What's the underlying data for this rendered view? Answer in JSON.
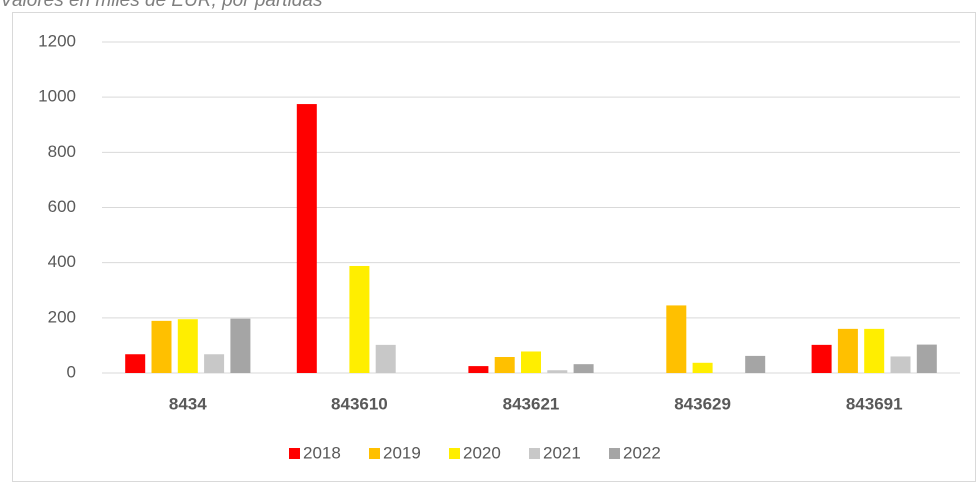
{
  "chart_data": {
    "type": "bar",
    "title": "Valores en miles de EUR, por partidas",
    "categories": [
      "8434",
      "843610",
      "843621",
      "843629",
      "843691"
    ],
    "series": [
      {
        "name": "2018",
        "color": "#ff0000",
        "values": [
          68,
          975,
          25,
          null,
          102
        ]
      },
      {
        "name": "2019",
        "color": "#ffc000",
        "values": [
          189,
          null,
          58,
          245,
          160
        ]
      },
      {
        "name": "2020",
        "color": "#ffee00",
        "values": [
          195,
          388,
          78,
          37,
          160
        ]
      },
      {
        "name": "2021",
        "color": "#c8c8c8",
        "values": [
          68,
          102,
          10,
          null,
          60
        ]
      },
      {
        "name": "2022",
        "color": "#a5a5a5",
        "values": [
          197,
          null,
          32,
          62,
          103
        ]
      }
    ],
    "ylim": [
      0,
      1200
    ],
    "yticks": [
      0,
      200,
      400,
      600,
      800,
      1000,
      1200
    ],
    "grid": true,
    "legend": "bottom"
  }
}
